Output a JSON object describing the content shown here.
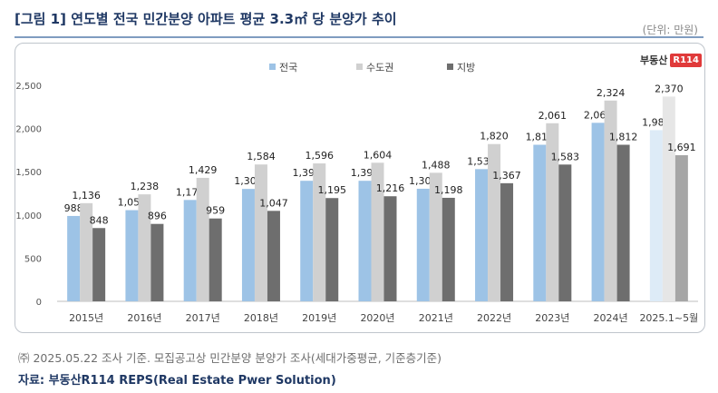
{
  "header": {
    "title": "[그림 1] 연도별 전국 민간분양 아파트 평균 3.3㎡ 당 분양가 추이",
    "unit": "(단위: 만원)"
  },
  "logo": {
    "text": "부동산",
    "badge": "R114"
  },
  "footer": {
    "note": "㈜ 2025.05.22 조사 기준. 모집공고상 민간분양 분양가 조사(세대가중평균, 기준층기준)",
    "source": "자료: 부동산R114 REPS(Real Estate Pwer Solution)"
  },
  "colors": {
    "series": [
      "#9dc3e6",
      "#d0d0d0",
      "#6e6e6e"
    ],
    "highlight": [
      "#ddebf7",
      "#e6e6e6",
      "#a6a6a6"
    ]
  },
  "chart_data": {
    "type": "bar",
    "categories": [
      "2015년",
      "2016년",
      "2017년",
      "2018년",
      "2019년",
      "2020년",
      "2021년",
      "2022년",
      "2023년",
      "2024년",
      "2025.1~5월"
    ],
    "series": [
      {
        "name": "전국",
        "values": [
          988,
          1055,
          1173,
          1301,
          1395,
          1395,
          1303,
          1530,
          1812,
          2066,
          1981
        ]
      },
      {
        "name": "수도권",
        "values": [
          1136,
          1238,
          1429,
          1584,
          1596,
          1604,
          1488,
          1820,
          2061,
          2324,
          2370
        ]
      },
      {
        "name": "지방",
        "values": [
          848,
          896,
          959,
          1047,
          1195,
          1216,
          1198,
          1367,
          1583,
          1812,
          1691
        ]
      }
    ],
    "data_labels": [
      [
        "988",
        "1,055",
        "1,173",
        "1,301",
        "1,395",
        "1,395",
        "1,303",
        "1,530",
        "1,812",
        "2,066",
        "1,981"
      ],
      [
        "1,136",
        "1,238",
        "1,429",
        "1,584",
        "1,596",
        "1,604",
        "1,488",
        "1,820",
        "2,061",
        "2,324",
        "2,370"
      ],
      [
        "848",
        "896",
        "959",
        "1,047",
        "1,195",
        "1,216",
        "1,198",
        "1,367",
        "1,583",
        "1,812",
        "1,691"
      ]
    ],
    "yticks": [
      "0",
      "500",
      "1,000",
      "1,500",
      "2,000",
      "2,500"
    ],
    "ylim": [
      0,
      2500
    ],
    "legend_position": "top-left",
    "grid": false
  }
}
